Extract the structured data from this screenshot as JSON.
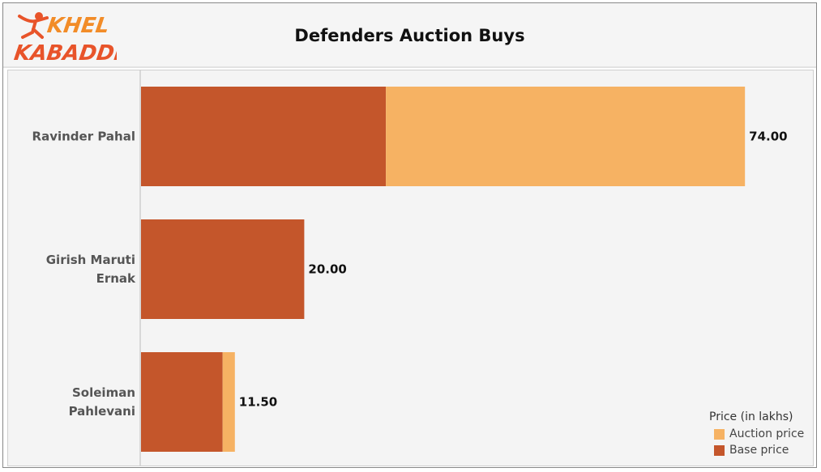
{
  "header": {
    "title": "Defenders Auction Buys"
  },
  "logo": {
    "line1": "KHEL",
    "line2": "KABADDI",
    "name": "khel-kabaddi-logo"
  },
  "colors": {
    "base": "#C4562B",
    "auction": "#F6B263",
    "plot_bg": "#F4F4F4"
  },
  "chart_data": {
    "type": "bar",
    "orientation": "horizontal",
    "stacked": true,
    "title": "Defenders Auction Buys",
    "categories": [
      [
        "Ravinder Pahal"
      ],
      [
        "Girish Maruti",
        "Ernak"
      ],
      [
        "Soleiman",
        "Pahlevani"
      ]
    ],
    "series": [
      {
        "name": "Base price",
        "values": [
          30.0,
          20.0,
          10.0
        ]
      },
      {
        "name": "Auction price",
        "values": [
          44.0,
          0.0,
          1.5
        ]
      }
    ],
    "totals": [
      "74.00",
      "20.00",
      "11.50"
    ],
    "xlim": [
      0,
      80
    ],
    "grid": false
  },
  "legend": {
    "title": "Price (in lakhs)",
    "items": [
      {
        "label": "Auction price",
        "color": "#F6B263"
      },
      {
        "label": "Base price",
        "color": "#C4562B"
      }
    ],
    "position": "bottom-right"
  }
}
